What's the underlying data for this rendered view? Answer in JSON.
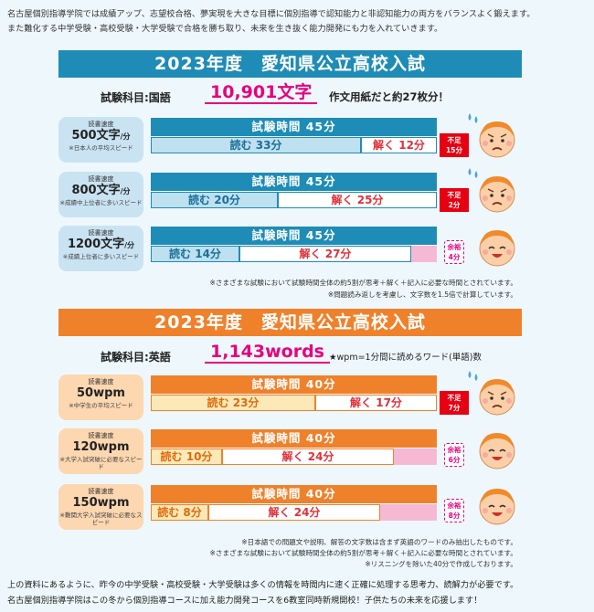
{
  "intro": {
    "line1": "名古屋個別指導学院では成績アップ、志望校合格、夢実現を大きな目標に個別指導で認知能力と非認知能力の両方をバランスよく鍛えます。",
    "line2": "また難化する中学受験・高校受験・大学受験で合格を勝ち取り、未来を生き抜く能力開発にも力を入れていきます。"
  },
  "japanese": {
    "banner": "2023年度　愛知県公立高校入試",
    "subject": "試験科目:国語",
    "count": "10,901文字",
    "note": "作文用紙だと約27枚分！",
    "rows": [
      {
        "speed_label": "読書速度",
        "speed_value": "500文字",
        "unit": "/分",
        "desc": "※日本人の平均スピード",
        "time": "試験時間 45分",
        "read": "読む 33分",
        "solve": "解く 12分",
        "status_l1": "不足",
        "status_l2": "15分",
        "read_min": 33,
        "solve_min": 12,
        "total_min": 45,
        "mood": "sad"
      },
      {
        "speed_label": "読書速度",
        "speed_value": "800文字",
        "unit": "/分",
        "desc": "※成績中上位者に多いスピード",
        "time": "試験時間 45分",
        "read": "読む 20分",
        "solve": "解く 25分",
        "status_l1": "不足",
        "status_l2": "2分",
        "read_min": 20,
        "solve_min": 25,
        "total_min": 45,
        "mood": "sad"
      },
      {
        "speed_label": "読書速度",
        "speed_value": "1200文字",
        "unit": "/分",
        "desc": "※成績上位者に多いスピード",
        "time": "試験時間 45分",
        "read": "読む 14分",
        "solve": "解く 27分",
        "status_l1": "余裕",
        "status_l2": "4分",
        "read_min": 14,
        "solve_min": 27,
        "total_min": 45,
        "mood": "happy"
      }
    ],
    "foot1": "※さまざまな試験において試験時間全体の約5割が思考＋解く＋記入に必要な時間とされています。",
    "foot2": "※問題読み返しを考慮し、文字数を1.5倍で計算しています。"
  },
  "english": {
    "banner": "2023年度　愛知県公立高校入試",
    "subject": "試験科目:英語",
    "count": "1,143words",
    "note": "★wpm=1分間に読めるワード(単語)数",
    "rows": [
      {
        "speed_label": "読書速度",
        "speed_value": "50wpm",
        "unit": "",
        "desc": "※中学生の平均スピード",
        "time": "試験時間 40分",
        "read": "読む 23分",
        "solve": "解く 17分",
        "status_l1": "不足",
        "status_l2": "7分",
        "read_min": 23,
        "solve_min": 17,
        "total_min": 40,
        "mood": "sad"
      },
      {
        "speed_label": "読書速度",
        "speed_value": "120wpm",
        "unit": "",
        "desc": "※大学入試突破に必要なスピード",
        "time": "試験時間 40分",
        "read": "読む 10分",
        "solve": "解く 24分",
        "status_l1": "余裕",
        "status_l2": "6分",
        "read_min": 10,
        "solve_min": 24,
        "total_min": 40,
        "mood": "happy"
      },
      {
        "speed_label": "読書速度",
        "speed_value": "150wpm",
        "unit": "",
        "desc": "※難関大学入試突破に必要なスピード",
        "time": "試験時間 40分",
        "read": "読む 8分",
        "solve": "解く 24分",
        "status_l1": "余裕",
        "status_l2": "8分",
        "read_min": 8,
        "solve_min": 24,
        "total_min": 40,
        "mood": "happy"
      }
    ],
    "foot1": "※日本語での問題文や説明、解答の文字数は含まず英語のワードのみ抽出したものです。",
    "foot2": "※さまざまな試験において試験時間全体の約5割が思考＋解く＋記入に必要な時間とされています。",
    "foot3": "※リスニングを除いた40分で作成しております。"
  },
  "outro": {
    "line1": "上の資料にあるように、昨今の中学受験・高校受験・大学受験は多くの情報を時間内に速く正確に処理する思考力、読解力が必要です。",
    "line2": "名古屋個別指導学院はこの冬から個別指導コースに加え能力開発コースを6教室同時新規開校！子供たちの未来を応援します！"
  },
  "colors": {
    "blue": "#1e8cb6",
    "orange": "#f0812b",
    "magenta": "#e6007e",
    "red": "#e60012"
  }
}
